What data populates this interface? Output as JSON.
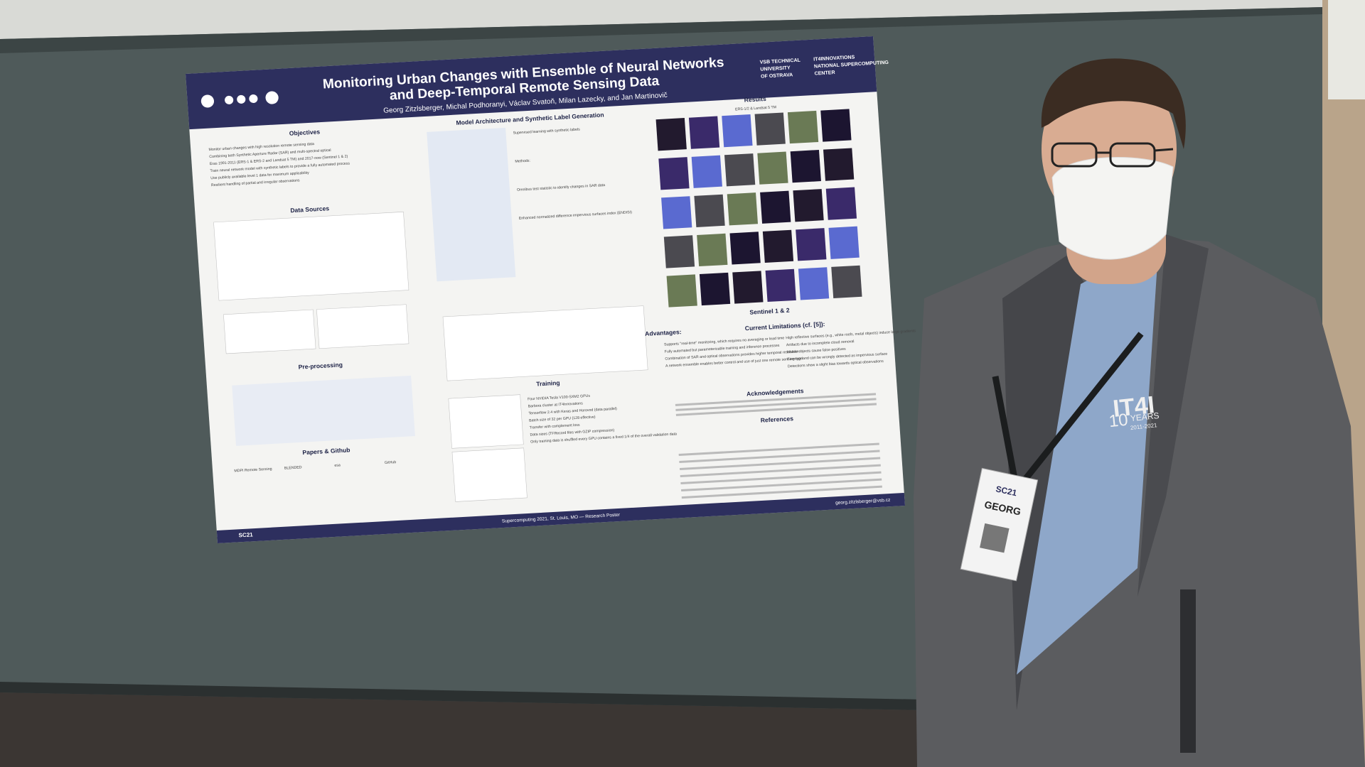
{
  "poster": {
    "title_line1": "Monitoring Urban Changes with Ensemble of Neural Networks",
    "title_line2": "and Deep-Temporal Remote Sensing Data",
    "authors": "Georg Zitzlsberger, Michal Podhoranyi, Václav Svatoň, Milan Lazecky, and Jan Martinovič",
    "logo_left": [
      "VSB TECHNICAL",
      "UNIVERSITY",
      "OF OSTRAVA"
    ],
    "logo_right": [
      "IT4INNOVATIONS",
      "NATIONAL SUPERCOMPUTING",
      "CENTER"
    ],
    "sections": {
      "objectives": {
        "heading": "Objectives",
        "lines": [
          "Monitor urban changes with high resolution remote sensing data",
          "Combining both Synthetic Aperture Radar (SAR) and multi-spectral optical",
          "Eras 1991-2011 (ERS-1 & ERS-2 and Landsat 5 TM) and 2017-now (Sentinel 1 & 2)",
          "Train neural network model with synthetic labels to provide a fully automated process",
          "Use publicly available level 1 data for maximum applicability",
          "Resilient handling of partial and irregular observations"
        ]
      },
      "data_sources": {
        "heading": "Data Sources"
      },
      "preprocessing": {
        "heading": "Pre-processing"
      },
      "papers": {
        "heading": "Papers & Github",
        "items": [
          "MDPI Remote Sensing",
          "BLENDED",
          "esa",
          "GitHub"
        ]
      },
      "model": {
        "heading": "Model Architecture and Synthetic Label Generation",
        "lines": [
          "Supervised learning with synthetic labels",
          "Methods:",
          "Omnibus test statistic to identify changes in SAR data",
          "Enhanced normalized difference impervious surfaces index (ENDISI)"
        ]
      },
      "training": {
        "heading": "Training",
        "lines": [
          "Four NVIDIA Tesla V100-SXM2 GPUs",
          "Barbora cluster at IT4Innovations",
          "Tensorflow 2.4 with Keras and Horovod (data parallel)",
          "Batch size of 32 per GPU (128 effective)",
          "Transfer with complement loss",
          "Data sizes (TFRecord files with GZIP compression)",
          "Only training data is shuffled every GPU contains a fixed 1/4 of the overall validation data"
        ]
      },
      "results": {
        "heading": "Results",
        "sub1": "ERS-1/2 & Landsat 5 TM",
        "sub2": "Sentinel 1 & 2"
      },
      "advantages": {
        "heading": "Advantages:",
        "lines": [
          "Supports \"real-time\" monitoring, which requires no averaging or lead time",
          "Fully automated but parameterizable training and inference processes",
          "Combination of SAR and optical observations provides higher temporal resolution",
          "A network ensemble enables better control and use of just one remote sensing type"
        ]
      },
      "limitations": {
        "heading": "Current Limitations (cf. [5]):",
        "lines": [
          "High reflective surfaces (e.g., white roofs, metal objects) induce large gradients",
          "Artifacts due to incomplete cloud removal",
          "Mobile objects cause false positives",
          "Farming land can be wrongly detected as impervious surface",
          "Detections show a slight bias towards optical observations"
        ]
      },
      "acknowledgements": {
        "heading": "Acknowledgements"
      },
      "references": {
        "heading": "References"
      }
    },
    "footer": {
      "conference": "SC21",
      "venue": "Supercomputing 2021, St. Louis, MO — Research Poster",
      "email": "georg.zitzlsberger@vsb.cz"
    }
  },
  "jacket": {
    "logo": "IT4I",
    "years_number": "10",
    "years_word": "YEARS",
    "years_range": "2011-2021"
  },
  "badge": {
    "event": "SC21",
    "name": "GEORG"
  }
}
